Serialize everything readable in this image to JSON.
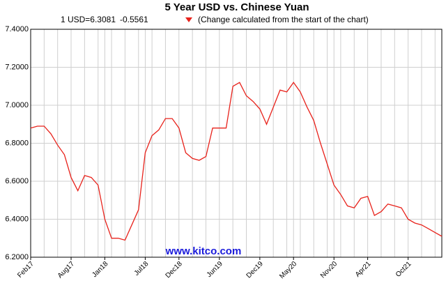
{
  "chart_data": {
    "type": "line",
    "title": "5 Year USD vs. Chinese Yuan",
    "subtitle_price": "1 USD=6.3081",
    "subtitle_change": "-0.5561",
    "subtitle_note": "(Change calculated from the start of the chart)",
    "watermark": "www.kitco.com",
    "categories": [
      "Feb17",
      null,
      null,
      null,
      null,
      null,
      "Aug17",
      null,
      null,
      null,
      null,
      "Jan18",
      null,
      null,
      null,
      null,
      null,
      "Jul18",
      null,
      null,
      null,
      null,
      "Dec18",
      null,
      null,
      null,
      null,
      null,
      "Jun19",
      null,
      null,
      null,
      null,
      null,
      "Dec19",
      null,
      null,
      null,
      null,
      "May20",
      null,
      null,
      null,
      null,
      null,
      "Nov20",
      null,
      null,
      null,
      null,
      "Apr21",
      null,
      null,
      null,
      null,
      null,
      "Oct21",
      null,
      null,
      null,
      null,
      null
    ],
    "series": [
      {
        "name": "USD/CNY",
        "color": "#e8221b",
        "values": [
          6.88,
          6.89,
          6.89,
          6.85,
          6.79,
          6.74,
          6.62,
          6.55,
          6.63,
          6.62,
          6.58,
          6.4,
          6.3,
          6.3,
          6.29,
          6.37,
          6.45,
          6.75,
          6.84,
          6.87,
          6.93,
          6.93,
          6.88,
          6.75,
          6.72,
          6.71,
          6.73,
          6.88,
          6.88,
          6.88,
          7.1,
          7.12,
          7.05,
          7.02,
          6.98,
          6.9,
          6.99,
          7.08,
          7.07,
          7.12,
          7.07,
          6.99,
          6.92,
          6.8,
          6.69,
          6.58,
          6.53,
          6.47,
          6.46,
          6.51,
          6.52,
          6.42,
          6.44,
          6.48,
          6.47,
          6.46,
          6.4,
          6.38,
          6.37,
          6.35,
          6.33,
          6.31
        ]
      }
    ],
    "ylim": [
      6.2,
      7.4
    ],
    "yticks": [
      {
        "value": 6.2,
        "label": "6.2000"
      },
      {
        "value": 6.4,
        "label": "6.4000"
      },
      {
        "value": 6.6,
        "label": "6.6000"
      },
      {
        "value": 6.8,
        "label": "6.8000"
      },
      {
        "value": 7.0,
        "label": "7.0000"
      },
      {
        "value": 7.2,
        "label": "7.2000"
      },
      {
        "value": 7.4,
        "label": "7.4000"
      }
    ],
    "grid": true
  }
}
